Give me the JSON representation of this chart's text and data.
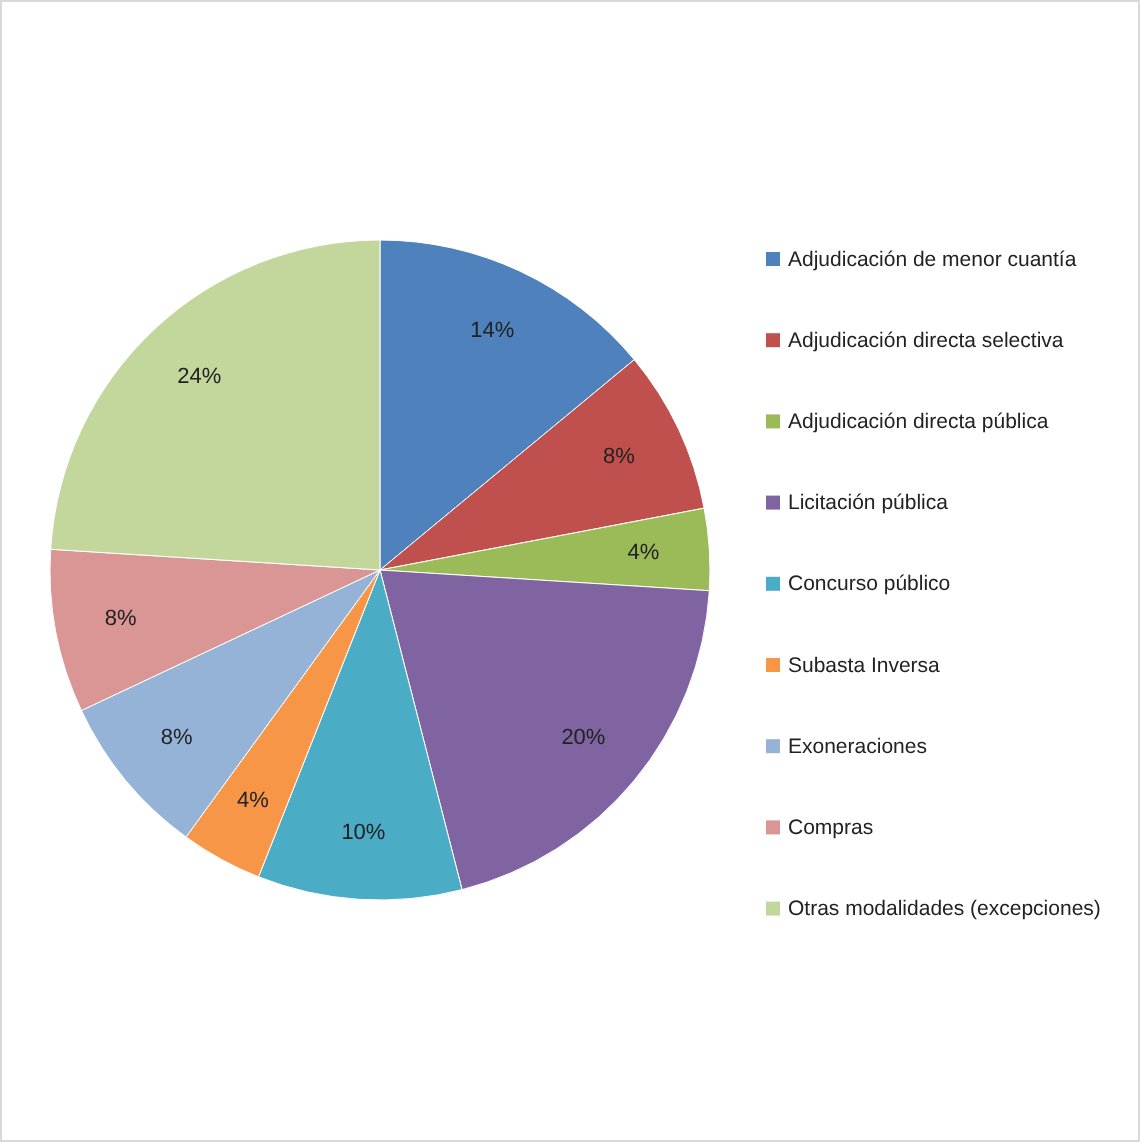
{
  "chart_data": {
    "type": "pie",
    "categories": [
      "Adjudicación de menor cuantía",
      "Adjudicación directa selectiva",
      "Adjudicación directa pública",
      "Licitación pública",
      "Concurso público",
      "Subasta Inversa",
      "Exoneraciones",
      "Compras",
      "Otras modalidades (excepciones)"
    ],
    "values": [
      14,
      8,
      4,
      20,
      10,
      4,
      8,
      8,
      24
    ],
    "colors": [
      "#4f81bd",
      "#c0504d",
      "#9bbb59",
      "#8064a2",
      "#4bacc6",
      "#f79646",
      "#95b3d7",
      "#d99694",
      "#c3d69b"
    ],
    "value_labels": [
      "14%",
      "8%",
      "4%",
      "20%",
      "10%",
      "4%",
      "8%",
      "8%",
      "24%"
    ],
    "legend": "right"
  }
}
